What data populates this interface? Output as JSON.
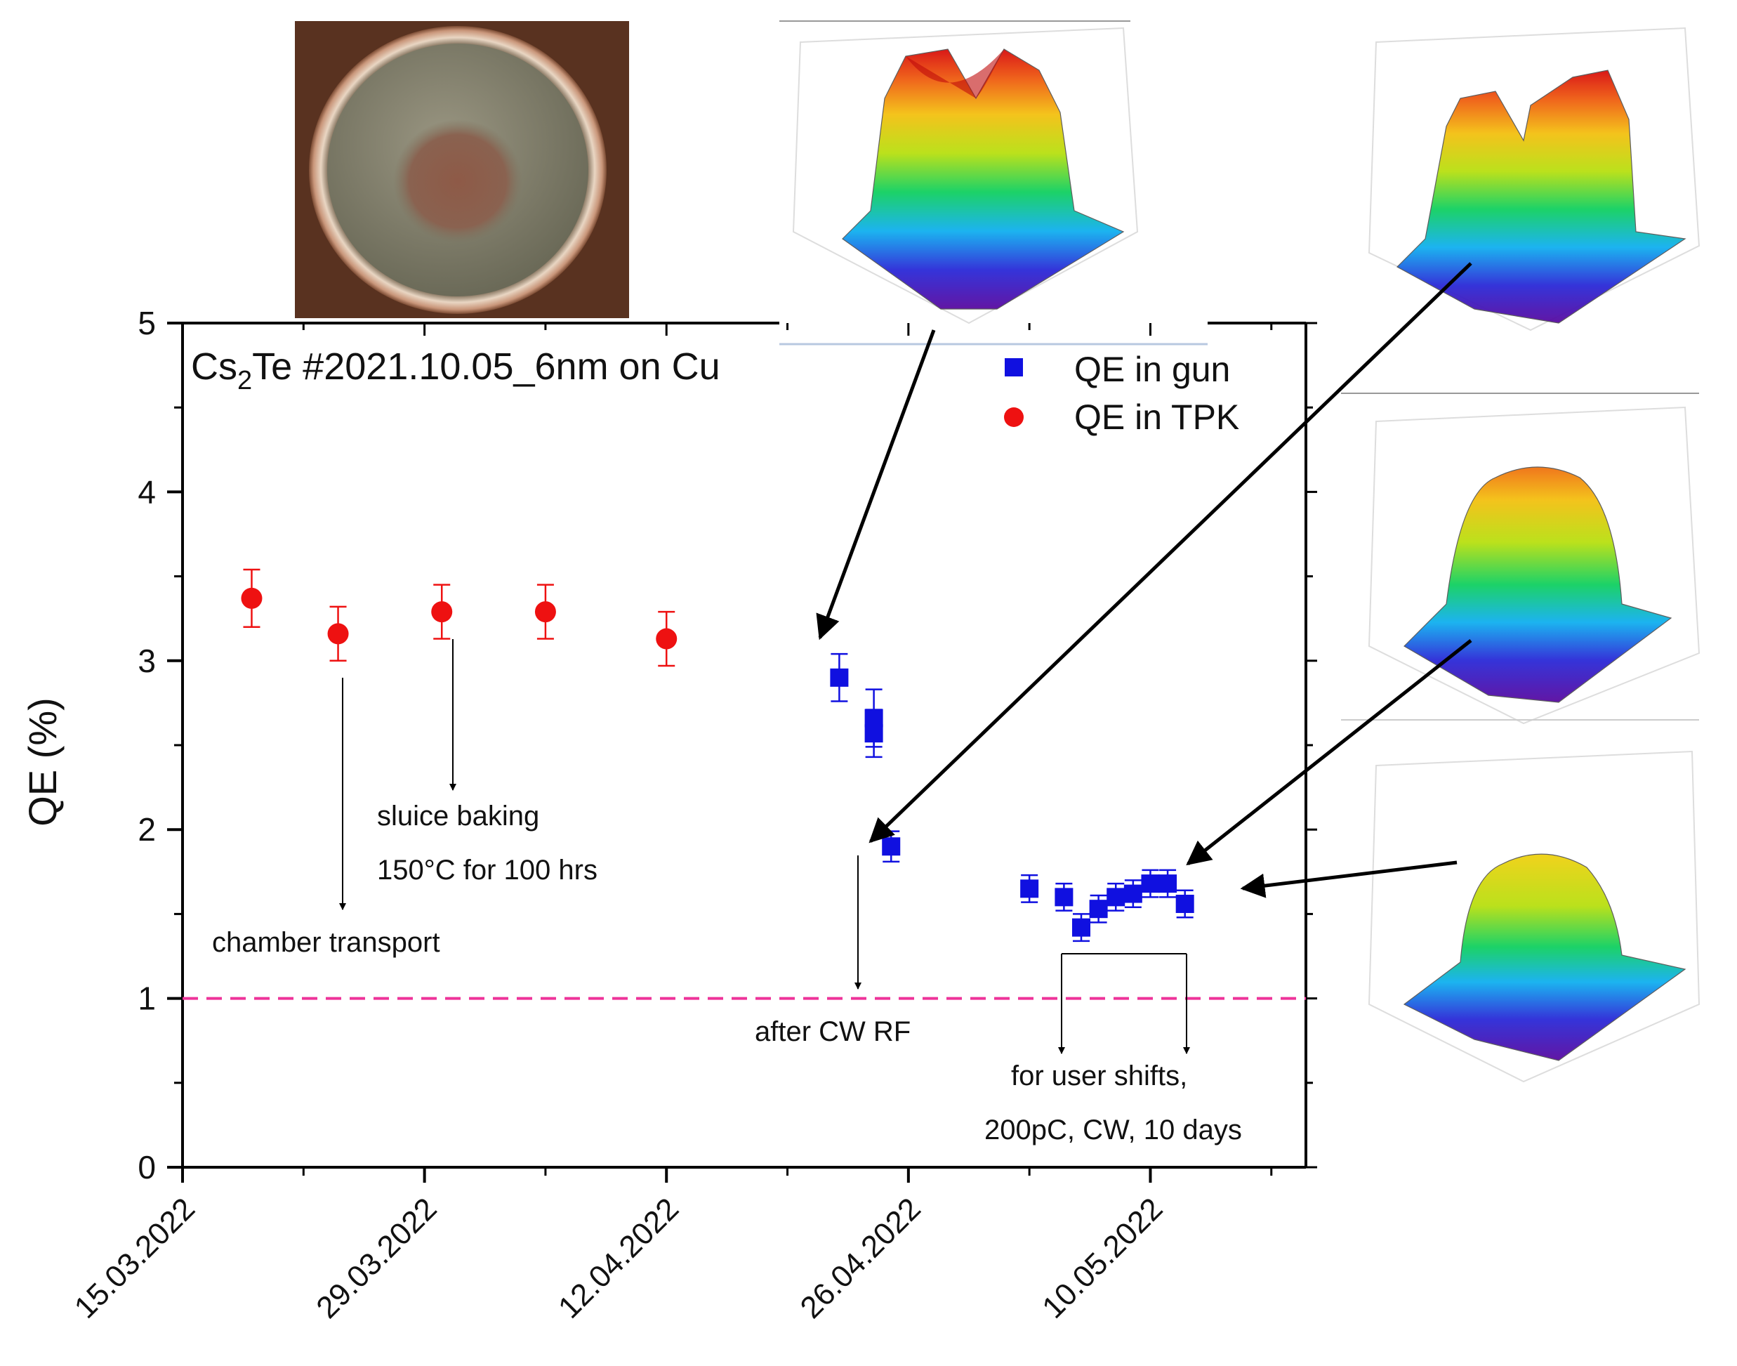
{
  "chart_data": {
    "type": "scatter",
    "title": "Cs2Te #2021.10.05_6nm on Cu",
    "title_parts": {
      "pre": "Cs",
      "sub": "2",
      "post": "Te #2021.10.05_6nm on Cu"
    },
    "xlabel": "",
    "ylabel": "QE (%)",
    "xlim": [
      "2022-03-15",
      "2022-05-19"
    ],
    "ylim": [
      0,
      5
    ],
    "yticks": [
      0,
      1,
      2,
      3,
      4,
      5
    ],
    "xticks": [
      "15.03.2022",
      "29.03.2022",
      "12.04.2022",
      "26.04.2022",
      "10.05.2022"
    ],
    "xtick_dates": [
      "2022-03-15",
      "2022-03-29",
      "2022-04-12",
      "2022-04-26",
      "2022-05-10"
    ],
    "legend_position": "top-right",
    "grid": false,
    "series": [
      {
        "name": "QE in gun",
        "marker": "square",
        "color": "#1010e0",
        "points": [
          {
            "x": "2022-04-22",
            "y": 2.9,
            "err": 0.14
          },
          {
            "x": "2022-04-24",
            "y": 2.66,
            "err": 0.17
          },
          {
            "x": "2022-04-24",
            "y": 2.57,
            "err": 0.14
          },
          {
            "x": "2022-04-25",
            "y": 1.9,
            "err": 0.09
          },
          {
            "x": "2022-05-03",
            "y": 1.65,
            "err": 0.08
          },
          {
            "x": "2022-05-05",
            "y": 1.6,
            "err": 0.08
          },
          {
            "x": "2022-05-06",
            "y": 1.42,
            "err": 0.08
          },
          {
            "x": "2022-05-07",
            "y": 1.53,
            "err": 0.08
          },
          {
            "x": "2022-05-08",
            "y": 1.6,
            "err": 0.08
          },
          {
            "x": "2022-05-09",
            "y": 1.62,
            "err": 0.08
          },
          {
            "x": "2022-05-10",
            "y": 1.68,
            "err": 0.08
          },
          {
            "x": "2022-05-11",
            "y": 1.68,
            "err": 0.08
          },
          {
            "x": "2022-05-12",
            "y": 1.56,
            "err": 0.08
          }
        ]
      },
      {
        "name": "QE in TPK",
        "marker": "circle",
        "color": "#ee1111",
        "points": [
          {
            "x": "2022-03-19",
            "y": 3.37,
            "err": 0.17
          },
          {
            "x": "2022-03-24",
            "y": 3.16,
            "err": 0.16
          },
          {
            "x": "2022-03-30",
            "y": 3.29,
            "err": 0.16
          },
          {
            "x": "2022-04-05",
            "y": 3.29,
            "err": 0.16
          },
          {
            "x": "2022-04-12",
            "y": 3.13,
            "err": 0.16
          }
        ]
      }
    ],
    "reference_line": {
      "y": 1.0,
      "style": "dashed",
      "color": "#ee3399"
    },
    "annotations": [
      {
        "name": "sluice-baking",
        "lines": [
          "sluice baking",
          "150°C for 100 hrs"
        ]
      },
      {
        "name": "chamber-transport",
        "lines": [
          "chamber transport"
        ]
      },
      {
        "name": "after-cw-rf",
        "lines": [
          "after CW RF"
        ]
      },
      {
        "name": "user-shifts",
        "lines": [
          "for user shifts,",
          "200pC, CW, 10 days"
        ]
      }
    ]
  }
}
